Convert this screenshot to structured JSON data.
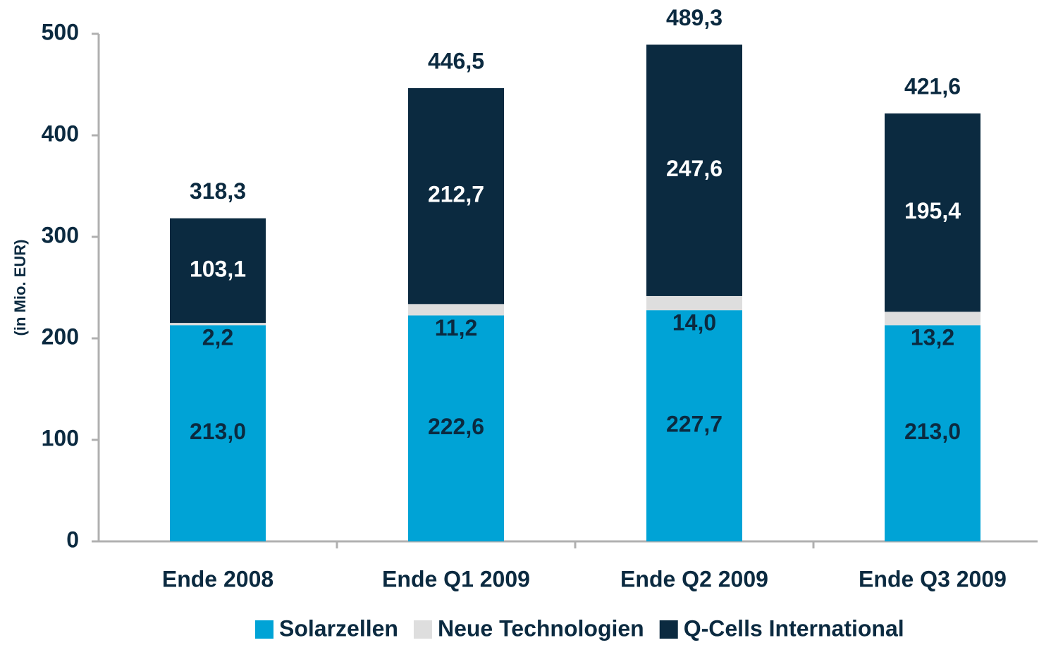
{
  "chart_data": {
    "type": "stacked_bar",
    "y_label": "(in Mio. EUR)",
    "categories": [
      "Ende 2008",
      "Ende Q1 2009",
      "Ende Q2 2009",
      "Ende Q3 2009"
    ],
    "series": [
      {
        "name": "Solarzellen",
        "color": "#00a3d6",
        "label_color": "#0b2a40",
        "values": [
          213.0,
          222.6,
          227.7,
          213.0
        ],
        "value_labels": [
          "213,0",
          "222,6",
          "227,7",
          "213,0"
        ]
      },
      {
        "name": "Neue Technologien",
        "color": "#dedede",
        "label_color": "#0b2a40",
        "values": [
          2.2,
          11.2,
          14.0,
          13.2
        ],
        "value_labels": [
          "2,2",
          "11,2",
          "14,0",
          "13,2"
        ]
      },
      {
        "name": "Q-Cells International",
        "color": "#0b2a40",
        "label_color": "#ffffff",
        "values": [
          103.1,
          212.7,
          247.6,
          195.4
        ],
        "value_labels": [
          "103,1",
          "212,7",
          "247,6",
          "195,4"
        ]
      }
    ],
    "totals": [
      318.3,
      446.5,
      489.3,
      421.6
    ],
    "total_labels": [
      "318,3",
      "446,5",
      "489,3",
      "421,6"
    ],
    "ylim": [
      0,
      500
    ],
    "yticks": [
      0,
      100,
      200,
      300,
      400,
      500
    ],
    "grid": false
  }
}
